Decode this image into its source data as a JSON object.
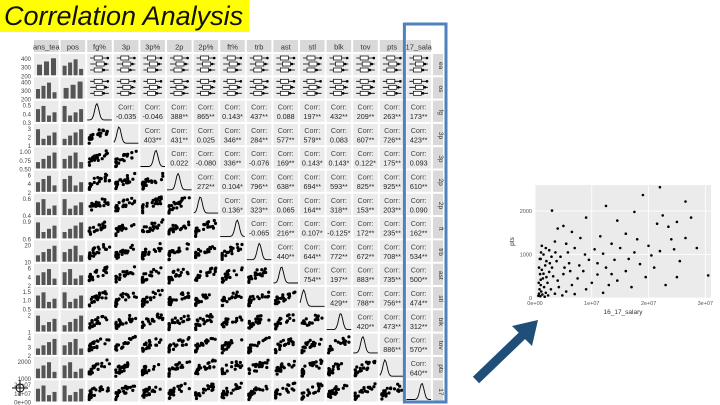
{
  "slide": {
    "title": "Correlation Analysis"
  },
  "colors": {
    "title_highlight": "#ffff00",
    "panel_bg": "#ebebeb",
    "strip_bg": "#d9d9d9",
    "ink": "#000000",
    "highlight_box": "#4f81bd",
    "arrow": "#1f4e79"
  },
  "icons": [
    "crosshair-icon",
    "arrow-icon"
  ],
  "chart_data": [
    {
      "type": "scatter-matrix",
      "variables": [
        "ans_tea",
        "pos",
        "fg%",
        "3p",
        "3p%",
        "2p",
        "2p%",
        "ft%",
        "trb",
        "ast",
        "stl",
        "blk",
        "tov",
        "pts",
        "17_sala"
      ],
      "row_strips": [
        "ea",
        "os",
        "fg",
        "3p",
        "3p",
        "2p",
        "2p",
        "ft",
        "trb",
        "ast",
        "stl",
        "blk",
        "tov",
        "pts",
        "17"
      ],
      "upper_label": "Corr:",
      "correlations": [
        {
          "row": 2,
          "col": 3,
          "text": "-0.035"
        },
        {
          "row": 2,
          "col": 4,
          "text": "-0.046"
        },
        {
          "row": 2,
          "col": 5,
          "text": "388**"
        },
        {
          "row": 2,
          "col": 6,
          "text": "865**"
        },
        {
          "row": 2,
          "col": 7,
          "text": "0.143*"
        },
        {
          "row": 2,
          "col": 8,
          "text": "437**"
        },
        {
          "row": 2,
          "col": 9,
          "text": "0.088"
        },
        {
          "row": 2,
          "col": 10,
          "text": "197**"
        },
        {
          "row": 2,
          "col": 11,
          "text": "432**"
        },
        {
          "row": 2,
          "col": 12,
          "text": "209**"
        },
        {
          "row": 2,
          "col": 13,
          "text": "263**"
        },
        {
          "row": 2,
          "col": 14,
          "text": "173**"
        },
        {
          "row": 3,
          "col": 4,
          "text": "403**"
        },
        {
          "row": 3,
          "col": 5,
          "text": "431**"
        },
        {
          "row": 3,
          "col": 6,
          "text": "0.025"
        },
        {
          "row": 3,
          "col": 7,
          "text": "346**"
        },
        {
          "row": 3,
          "col": 8,
          "text": "284**"
        },
        {
          "row": 3,
          "col": 9,
          "text": "577**"
        },
        {
          "row": 3,
          "col": 10,
          "text": "579**"
        },
        {
          "row": 3,
          "col": 11,
          "text": "0.083"
        },
        {
          "row": 3,
          "col": 12,
          "text": "607**"
        },
        {
          "row": 3,
          "col": 13,
          "text": "726**"
        },
        {
          "row": 3,
          "col": 14,
          "text": "423**"
        },
        {
          "row": 4,
          "col": 5,
          "text": "0.022"
        },
        {
          "row": 4,
          "col": 6,
          "text": "-0.080"
        },
        {
          "row": 4,
          "col": 7,
          "text": "336**"
        },
        {
          "row": 4,
          "col": 8,
          "text": "-0.076"
        },
        {
          "row": 4,
          "col": 9,
          "text": "169**"
        },
        {
          "row": 4,
          "col": 10,
          "text": "0.143*"
        },
        {
          "row": 4,
          "col": 11,
          "text": "0.143*"
        },
        {
          "row": 4,
          "col": 12,
          "text": "0.122*"
        },
        {
          "row": 4,
          "col": 13,
          "text": "175**"
        },
        {
          "row": 4,
          "col": 14,
          "text": "0.093"
        },
        {
          "row": 5,
          "col": 6,
          "text": "272**"
        },
        {
          "row": 5,
          "col": 7,
          "text": "0.104*"
        },
        {
          "row": 5,
          "col": 8,
          "text": "796**"
        },
        {
          "row": 5,
          "col": 9,
          "text": "638**"
        },
        {
          "row": 5,
          "col": 10,
          "text": "694**"
        },
        {
          "row": 5,
          "col": 11,
          "text": "593**"
        },
        {
          "row": 5,
          "col": 12,
          "text": "825**"
        },
        {
          "row": 5,
          "col": 13,
          "text": "925**"
        },
        {
          "row": 5,
          "col": 14,
          "text": "610**"
        },
        {
          "row": 6,
          "col": 7,
          "text": "0.136*"
        },
        {
          "row": 6,
          "col": 8,
          "text": "323**"
        },
        {
          "row": 6,
          "col": 9,
          "text": "0.065"
        },
        {
          "row": 6,
          "col": 10,
          "text": "164**"
        },
        {
          "row": 6,
          "col": 11,
          "text": "318**"
        },
        {
          "row": 6,
          "col": 12,
          "text": "153**"
        },
        {
          "row": 6,
          "col": 13,
          "text": "203**"
        },
        {
          "row": 6,
          "col": 14,
          "text": "0.090"
        },
        {
          "row": 7,
          "col": 8,
          "text": "-0.065"
        },
        {
          "row": 7,
          "col": 9,
          "text": "216**"
        },
        {
          "row": 7,
          "col": 10,
          "text": "0.107*"
        },
        {
          "row": 7,
          "col": 11,
          "text": "-0.125*"
        },
        {
          "row": 7,
          "col": 12,
          "text": "172**"
        },
        {
          "row": 7,
          "col": 13,
          "text": "235**"
        },
        {
          "row": 7,
          "col": 14,
          "text": "162**"
        },
        {
          "row": 8,
          "col": 9,
          "text": "440**"
        },
        {
          "row": 8,
          "col": 10,
          "text": "644**"
        },
        {
          "row": 8,
          "col": 11,
          "text": "772**"
        },
        {
          "row": 8,
          "col": 12,
          "text": "672**"
        },
        {
          "row": 8,
          "col": 13,
          "text": "708**"
        },
        {
          "row": 8,
          "col": 14,
          "text": "534**"
        },
        {
          "row": 9,
          "col": 10,
          "text": "754**"
        },
        {
          "row": 9,
          "col": 11,
          "text": "197**"
        },
        {
          "row": 9,
          "col": 12,
          "text": "883**"
        },
        {
          "row": 9,
          "col": 13,
          "text": "735**"
        },
        {
          "row": 9,
          "col": 14,
          "text": "500**"
        },
        {
          "row": 10,
          "col": 11,
          "text": "429**"
        },
        {
          "row": 10,
          "col": 12,
          "text": "788**"
        },
        {
          "row": 10,
          "col": 13,
          "text": "756**"
        },
        {
          "row": 10,
          "col": 14,
          "text": "474**"
        },
        {
          "row": 11,
          "col": 12,
          "text": "420**"
        },
        {
          "row": 11,
          "col": 13,
          "text": "473**"
        },
        {
          "row": 11,
          "col": 14,
          "text": "312**"
        },
        {
          "row": 12,
          "col": 13,
          "text": "886**"
        },
        {
          "row": 12,
          "col": 14,
          "text": "570**"
        },
        {
          "row": 13,
          "col": 14,
          "text": "640**"
        }
      ],
      "left_axis_ticks": [
        {
          "row": 0,
          "labels": [
            "400",
            "300",
            "200"
          ]
        },
        {
          "row": 1,
          "labels": [
            "400",
            "300",
            "200"
          ]
        },
        {
          "row": 2,
          "labels": [
            "0.5",
            "0.4",
            "0.3"
          ]
        },
        {
          "row": 3,
          "labels": [
            "3",
            "2",
            "1"
          ]
        },
        {
          "row": 4,
          "labels": [
            "1.00",
            "0.75",
            "0.50"
          ]
        },
        {
          "row": 5,
          "labels": [
            "6",
            "4",
            "2"
          ]
        },
        {
          "row": 6,
          "labels": [
            "0.6",
            "0.4"
          ]
        },
        {
          "row": 7,
          "labels": [
            "0.9",
            "0.6"
          ]
        },
        {
          "row": 8,
          "labels": [
            "20",
            "10"
          ]
        },
        {
          "row": 9,
          "labels": [
            "6",
            "4",
            "2"
          ]
        },
        {
          "row": 10,
          "labels": [
            "1.5",
            "1.0",
            "0.5"
          ]
        },
        {
          "row": 11,
          "labels": [
            "2",
            "1"
          ]
        },
        {
          "row": 12,
          "labels": [
            "4",
            "3",
            "2"
          ]
        },
        {
          "row": 13,
          "labels": [
            "2000",
            "1000"
          ]
        },
        {
          "row": 14,
          "labels": [
            "2e+07",
            "1e+07",
            "0e+00"
          ]
        }
      ]
    },
    {
      "type": "scatter",
      "xlabel": "16_17_salary",
      "ylabel": "pts",
      "xlim": [
        0,
        31000000
      ],
      "ylim": [
        0,
        2600
      ],
      "x_ticks": [
        {
          "value": 0,
          "label": "0e+00"
        },
        {
          "value": 10000000,
          "label": "1e+07"
        },
        {
          "value": 20000000,
          "label": "2e+07"
        },
        {
          "value": 30000000,
          "label": "3e+07"
        }
      ],
      "y_ticks": [
        {
          "value": 0,
          "label": "0"
        },
        {
          "value": 1000,
          "label": "1000"
        },
        {
          "value": 2000,
          "label": "2000"
        }
      ],
      "grid": true,
      "points": [
        {
          "x": 22000000,
          "y": 2550
        },
        {
          "x": 19000000,
          "y": 2370
        },
        {
          "x": 26500000,
          "y": 2220
        },
        {
          "x": 12500000,
          "y": 2120
        },
        {
          "x": 3000000,
          "y": 2010
        },
        {
          "x": 17500000,
          "y": 1980
        },
        {
          "x": 22500000,
          "y": 1900
        },
        {
          "x": 9000000,
          "y": 1850
        },
        {
          "x": 14500000,
          "y": 1780
        },
        {
          "x": 23500000,
          "y": 1640
        },
        {
          "x": 21500000,
          "y": 1710
        },
        {
          "x": 5000000,
          "y": 1660
        },
        {
          "x": 28500000,
          "y": 1150
        },
        {
          "x": 30500000,
          "y": 520
        },
        {
          "x": 26500000,
          "y": 1380
        },
        {
          "x": 18000000,
          "y": 1350
        },
        {
          "x": 16000000,
          "y": 1480
        },
        {
          "x": 11500000,
          "y": 1420
        },
        {
          "x": 24500000,
          "y": 1120
        },
        {
          "x": 22000000,
          "y": 1080
        },
        {
          "x": 20500000,
          "y": 980
        },
        {
          "x": 17500000,
          "y": 1050
        },
        {
          "x": 13500000,
          "y": 1250
        },
        {
          "x": 15000000,
          "y": 1150
        },
        {
          "x": 8000000,
          "y": 1380
        },
        {
          "x": 6500000,
          "y": 1520
        },
        {
          "x": 4000000,
          "y": 1600
        },
        {
          "x": 10500000,
          "y": 1120
        },
        {
          "x": 12000000,
          "y": 1020
        },
        {
          "x": 14000000,
          "y": 880
        },
        {
          "x": 18500000,
          "y": 780
        },
        {
          "x": 21000000,
          "y": 700
        },
        {
          "x": 25500000,
          "y": 850
        },
        {
          "x": 25000000,
          "y": 480
        },
        {
          "x": 16000000,
          "y": 620
        },
        {
          "x": 12500000,
          "y": 700
        },
        {
          "x": 9500000,
          "y": 880
        },
        {
          "x": 7000000,
          "y": 1150
        },
        {
          "x": 5500000,
          "y": 1250
        },
        {
          "x": 3500000,
          "y": 1300
        },
        {
          "x": 2500000,
          "y": 1100
        },
        {
          "x": 8500000,
          "y": 620
        },
        {
          "x": 11000000,
          "y": 540
        },
        {
          "x": 19500000,
          "y": 480
        },
        {
          "x": 14500000,
          "y": 400
        },
        {
          "x": 6000000,
          "y": 800
        },
        {
          "x": 4500000,
          "y": 950
        },
        {
          "x": 2000000,
          "y": 850
        },
        {
          "x": 1500000,
          "y": 1000
        },
        {
          "x": 1000000,
          "y": 900
        },
        {
          "x": 3000000,
          "y": 700
        },
        {
          "x": 7500000,
          "y": 450
        },
        {
          "x": 10000000,
          "y": 350
        },
        {
          "x": 13000000,
          "y": 300
        },
        {
          "x": 17000000,
          "y": 250
        },
        {
          "x": 23000000,
          "y": 300
        },
        {
          "x": 5000000,
          "y": 550
        },
        {
          "x": 4000000,
          "y": 400
        },
        {
          "x": 2500000,
          "y": 600
        },
        {
          "x": 1800000,
          "y": 750
        },
        {
          "x": 1200000,
          "y": 650
        },
        {
          "x": 900000,
          "y": 550
        },
        {
          "x": 1400000,
          "y": 450
        },
        {
          "x": 2200000,
          "y": 350
        },
        {
          "x": 3200000,
          "y": 500
        },
        {
          "x": 6500000,
          "y": 300
        },
        {
          "x": 9000000,
          "y": 200
        },
        {
          "x": 1000000,
          "y": 300
        },
        {
          "x": 1600000,
          "y": 250
        },
        {
          "x": 2800000,
          "y": 200
        },
        {
          "x": 4200000,
          "y": 250
        },
        {
          "x": 5500000,
          "y": 150
        },
        {
          "x": 800000,
          "y": 200
        },
        {
          "x": 1100000,
          "y": 150
        },
        {
          "x": 1900000,
          "y": 120
        },
        {
          "x": 3500000,
          "y": 100
        },
        {
          "x": 700000,
          "y": 100
        },
        {
          "x": 1300000,
          "y": 80
        },
        {
          "x": 2300000,
          "y": 60
        },
        {
          "x": 600000,
          "y": 50
        },
        {
          "x": 950000,
          "y": 40
        },
        {
          "x": 1700000,
          "y": 30
        },
        {
          "x": 4800000,
          "y": 60
        },
        {
          "x": 7000000,
          "y": 90
        },
        {
          "x": 12000000,
          "y": 120
        },
        {
          "x": 1000000,
          "y": 420
        },
        {
          "x": 1500000,
          "y": 560
        },
        {
          "x": 2000000,
          "y": 480
        },
        {
          "x": 2600000,
          "y": 800
        },
        {
          "x": 3800000,
          "y": 850
        },
        {
          "x": 5200000,
          "y": 700
        },
        {
          "x": 6200000,
          "y": 620
        },
        {
          "x": 7800000,
          "y": 750
        },
        {
          "x": 8800000,
          "y": 1000
        },
        {
          "x": 11000000,
          "y": 800
        },
        {
          "x": 1200000,
          "y": 1200
        },
        {
          "x": 700000,
          "y": 700
        },
        {
          "x": 650000,
          "y": 350
        },
        {
          "x": 850000,
          "y": 900
        },
        {
          "x": 1050000,
          "y": 1050
        },
        {
          "x": 20000000,
          "y": 1200
        },
        {
          "x": 24000000,
          "y": 1350
        },
        {
          "x": 16500000,
          "y": 900
        },
        {
          "x": 13500000,
          "y": 550
        },
        {
          "x": 27500000,
          "y": 1850
        },
        {
          "x": 25000000,
          "y": 1750
        },
        {
          "x": 5800000,
          "y": 1050
        },
        {
          "x": 3600000,
          "y": 1050
        },
        {
          "x": 2900000,
          "y": 950
        },
        {
          "x": 1900000,
          "y": 1150
        }
      ]
    }
  ]
}
